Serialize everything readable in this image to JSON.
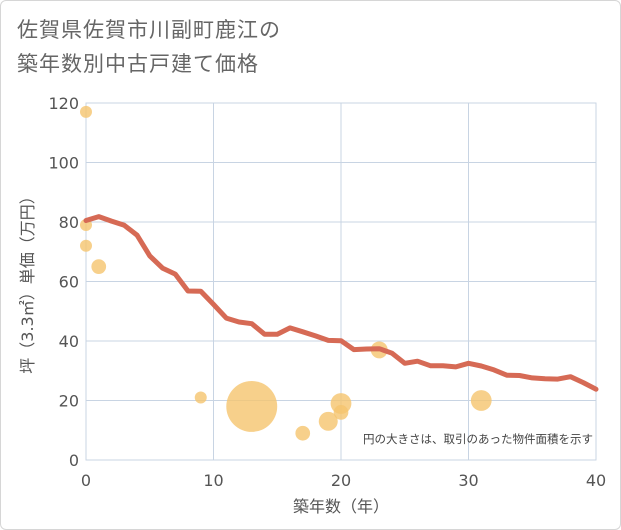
{
  "title_line1": "佐賀県佐賀市川副町鹿江の",
  "title_line2": "築年数別中古戸建て価格",
  "chart_data": {
    "type": "scatter",
    "xlabel": "築年数（年）",
    "ylabel": "坪（3.3㎡）単価（万円）",
    "xlim": [
      0,
      40
    ],
    "ylim": [
      0,
      120
    ],
    "xticks": [
      0,
      10,
      20,
      30,
      40
    ],
    "yticks": [
      0,
      20,
      40,
      60,
      80,
      100,
      120
    ],
    "grid": true,
    "annotation": "円の大きさは、取引のあった物件面積を示す",
    "colors": {
      "bubble": "#f5c46e",
      "line": "#d66a55",
      "grid": "#c8d4e3"
    },
    "bubbles": [
      {
        "x": 0,
        "y": 117,
        "size": 1
      },
      {
        "x": 0,
        "y": 79,
        "size": 1
      },
      {
        "x": 0,
        "y": 72,
        "size": 1
      },
      {
        "x": 1,
        "y": 65,
        "size": 1.5
      },
      {
        "x": 9,
        "y": 21,
        "size": 1
      },
      {
        "x": 13,
        "y": 18,
        "size": 18
      },
      {
        "x": 17,
        "y": 9,
        "size": 1.5
      },
      {
        "x": 19,
        "y": 13,
        "size": 2.5
      },
      {
        "x": 20,
        "y": 19,
        "size": 3
      },
      {
        "x": 20,
        "y": 16,
        "size": 1.5
      },
      {
        "x": 23,
        "y": 37,
        "size": 2
      },
      {
        "x": 31,
        "y": 20,
        "size": 3
      }
    ],
    "trend": {
      "name": "trend",
      "x": [
        0,
        1,
        2,
        3,
        4,
        5,
        6,
        7,
        8,
        9,
        10,
        11,
        12,
        13,
        14,
        15,
        16,
        17,
        18,
        19,
        20,
        21,
        22,
        23,
        24,
        25,
        26,
        27,
        28,
        29,
        30,
        31,
        32,
        33,
        34,
        35,
        36,
        37,
        38,
        39,
        40
      ],
      "y": [
        80.5,
        81.8,
        80.3,
        78.9,
        75.6,
        68.6,
        64.5,
        62.5,
        56.8,
        56.7,
        52.3,
        47.7,
        46.4,
        45.8,
        42.3,
        42.3,
        44.4,
        43.1,
        41.7,
        40.2,
        40.1,
        37.1,
        37.3,
        37.4,
        35.9,
        32.5,
        33.2,
        31.7,
        31.7,
        31.3,
        32.5,
        31.6,
        30.3,
        28.5,
        28.4,
        27.6,
        27.3,
        27.2,
        28.0,
        26.0,
        23.8
      ]
    }
  }
}
